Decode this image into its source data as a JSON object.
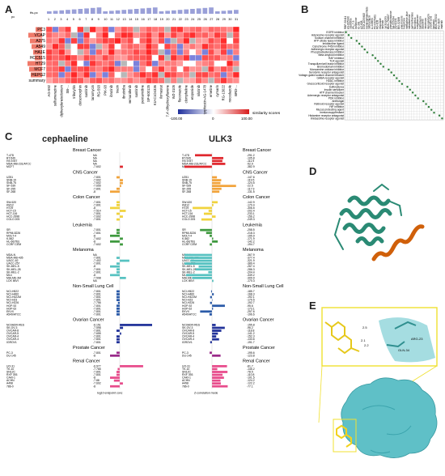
{
  "panels": {
    "A": "A",
    "B": "B",
    "C": "C",
    "D": "D",
    "E": "E"
  },
  "panelA": {
    "top_label": "tfs-pc",
    "side_label": "pc",
    "rows": [
      "PC3",
      "VCAP",
      "A375",
      "A549",
      "HA1E",
      "HCC515",
      "HT29",
      "MCF7",
      "HEPG2",
      "summary"
    ],
    "col_numbers": [
      "1",
      "2",
      "3",
      "4",
      "5",
      "6",
      "7",
      "8",
      "9",
      "10",
      "11",
      "12",
      "13",
      "14",
      "15",
      "16",
      "17",
      "18",
      "19",
      "20",
      "21",
      "22",
      "23",
      "24",
      "25",
      "26",
      "27",
      "28",
      "29",
      "30",
      "31"
    ],
    "col_names": [
      "AG-592",
      "sulfamerazine",
      "diphenyleneiodonium",
      "SB-...",
      "tributyltin",
      "dorsomorphin",
      "sunitinib",
      "tanomycin",
      "RG-593",
      "PIK-93",
      "ibrutinib",
      "tracin",
      "ibrutiniba",
      "vemurafenib",
      "sunitinib",
      "pentamidine",
      "SP-600125",
      "KU-C1O4336",
      "ilomastat",
      "7,4'-dihydroxyflavone",
      "WZ-3105",
      "fluconazole",
      "clompheline",
      "etoposide",
      "nilotinib",
      "tyrphostin-AG-1478",
      "emetine",
      "cymarin",
      "RG-13022",
      "nocodazole",
      "BRD-..."
    ],
    "legend_title": "similarity scores",
    "legend_ticks": [
      "-100.00",
      "0",
      "100.00"
    ]
  },
  "panelB": {
    "col_labels": [
      "RBP-52411",
      "AS-605240",
      "cladribine",
      "IPL-7-3",
      "isoflavone",
      "IC-261",
      "AZ-628",
      "GSK-1059615",
      "bisindolylmaleimide",
      "mithramycin",
      "A-443654",
      "PD-0325901",
      "RG-108",
      "etoposide",
      "ibrutinib",
      "cyclosporin",
      "BMS-754807",
      "phenylbutazone",
      "SB-525334",
      "ZSTK474",
      "BIX-02188",
      "anastrozole",
      "buspirone",
      "methylene-blue",
      "mitoxantrone",
      "pyrimethamine",
      "tacrolimus",
      "rosiglitazone",
      "bafilomycin",
      "dasatinib",
      "irinotecan",
      "ikarugamycin",
      "ursolic-acid",
      "lopinavir",
      "BMS-387032",
      "WZ-3105",
      "imatinib"
    ],
    "row_labels": [
      "EGFR inhibitor",
      "Adenosine receptor agonist",
      "Sodium channel inhibitor",
      "ATP citrate lyase inhibitor",
      "Imidazoline ligand",
      "Cytochrome P450 inhibitor",
      "Adrenergic receptor agonist",
      "Phosphodiesterase inhibitor",
      "Beta amyloid inhibitor",
      "RAF inhibitor",
      "TLR agonist",
      "Tranquilizer/cell lease inhibitor",
      "Bromodomain inhibitor",
      "Monoamine oxidase inhibitor",
      "Serotonin receptor antagonist",
      "Voltage-gated sodium channel blocker",
      "GABA receptor agonist",
      "HDAC inhibitor",
      "Glucocorticoid receptor agonist",
      "Sulfonylurea",
      "Insulin sensitizer",
      "ATP channel blocker",
      "Adrenergic receptor antagonist",
      "PDK inhibitor",
      "Antifungal",
      "Retinoid receptor agonist",
      "HIF inhibitor",
      "Mucus protecting agent",
      "Immunosuppressant",
      "Histamine receptor antagonist",
      "Imidazoline receptor agonist"
    ]
  },
  "panelC": {
    "title_left": "cephaeline",
    "title_right": "ULK3",
    "xlabel_left": "log10 endpoint conc",
    "xlabel_right": "Z-correlation mode",
    "groups": [
      {
        "name": "Breast Cancer",
        "color": "#e0282e",
        "rows": [
          [
            "T-47D",
            "NA",
            "-291.2"
          ],
          [
            "BT-549",
            "NA",
            "-105.8"
          ],
          [
            "HS 578T",
            "NA",
            "-111.9"
          ],
          [
            "MDA-MB-231/ATCC",
            "NA",
            "-92.9"
          ],
          [
            "MCF7",
            "-7.602",
            "-382.9"
          ]
        ]
      },
      {
        "name": "CNS Cancer",
        "color": "#f2a33a",
        "rows": [
          [
            "U251",
            "-7.801",
            "-147.6"
          ],
          [
            "SNB-19",
            "-7.602",
            "-119.5"
          ],
          [
            "SNB-75",
            "-7.602",
            "-124.5"
          ],
          [
            "SF-539",
            "-7.655",
            "-22.5"
          ],
          [
            "SF-295",
            "-7.801",
            "-117.9"
          ],
          [
            "SF-268",
            "-8",
            "-131.5"
          ]
        ]
      },
      {
        "name": "Colon Cancer",
        "color": "#f1d33c",
        "rows": [
          [
            "SW-620",
            "-7.801",
            "-142.9"
          ],
          [
            "KM12",
            "-7.801",
            "-170.4"
          ],
          [
            "HT29",
            "-8",
            "-306.5"
          ],
          [
            "HCT-15",
            "-7.514",
            "-202.4"
          ],
          [
            "HCT-116",
            "-7.801",
            "-233.1"
          ],
          [
            "HCC-2998",
            "-7.602",
            "-156.2"
          ],
          [
            "COLO 205",
            "-7.801",
            "-249.3"
          ]
        ]
      },
      {
        "name": "Leukemia",
        "color": "#3f9a3f",
        "rows": [
          [
            "SR",
            "-7.801",
            "-258.5"
          ],
          [
            "RPMI-8226",
            "-7.801",
            "-218.3"
          ],
          [
            "MOLT-4",
            "-8",
            "-195.9"
          ],
          [
            "K-562",
            "-7.602",
            "-171.9"
          ],
          [
            "HL-60(TB)",
            "-8",
            "-142.2"
          ],
          [
            "CCRF-CEM",
            "-7.602",
            "-194.7"
          ]
        ]
      },
      {
        "name": "Melanoma",
        "color": "#57c2c1",
        "rows": [
          [
            "MDA-N",
            "NA",
            "-367.9"
          ],
          [
            "MDA-MB-435",
            "-7.801",
            "-377.4"
          ],
          [
            "UACC-62",
            "-7.402",
            "-321.9"
          ],
          [
            "UACC-257",
            "-7.801",
            "-389.4"
          ],
          [
            "SK-MEL-5",
            "-8",
            "-267.4"
          ],
          [
            "SK-MEL-28",
            "-7.801",
            "-286.3"
          ],
          [
            "SK-MEL-2",
            "-7.801",
            "-204.4"
          ],
          [
            "M14",
            "-8",
            "-349.2"
          ],
          [
            "MALME-3M",
            "-7.508",
            "-309.9"
          ],
          [
            "LOX IMVI",
            "NA",
            "-170.3"
          ]
        ]
      },
      {
        "name": "Non-Small Lung Cell",
        "color": "#2a5aa8",
        "rows": [
          [
            "NCI-H522",
            "-7.801",
            "-185.7"
          ],
          [
            "NCI-H460",
            "-7.801",
            "-168.3"
          ],
          [
            "NCI-H322M",
            "-7.801",
            "-192.1"
          ],
          [
            "NCI-H23",
            "-7.801",
            "-179.5"
          ],
          [
            "NCI-H226",
            "-7.756",
            "-192.7"
          ],
          [
            "HOP-92",
            "-7.801",
            "-95.6"
          ],
          [
            "HOP-62",
            "-7.801",
            "-173.1"
          ],
          [
            "EKVX",
            "-7.801",
            "-257.6"
          ],
          [
            "A549/ATCC",
            "-7.801",
            "-196.6"
          ]
        ]
      },
      {
        "name": "Ovarian Cancer",
        "color": "#21329a",
        "rows": [
          [
            "NCI/ADR-RES",
            "-6.151",
            "-155.8"
          ],
          [
            "SK-OV-3",
            "-7.598",
            "-96.2"
          ],
          [
            "OVCAR-8",
            "-7.801",
            "-118.8"
          ],
          [
            "OVCAR-5",
            "-7.655",
            "-141.2"
          ],
          [
            "OVCAR-4",
            "-7.801",
            "-152.3"
          ],
          [
            "OVCAR-3",
            "-7.801",
            "-133.6"
          ],
          [
            "IGROV1",
            "-7.801",
            "-191.7"
          ]
        ]
      },
      {
        "name": "Prostate Cancer",
        "color": "#9a2a8a",
        "rows": [
          [
            "PC-3",
            "-7.801",
            "-195.6"
          ],
          [
            "DU-145",
            "-8",
            "-123.8"
          ]
        ]
      },
      {
        "name": "Renal Cancer",
        "color": "#e84c8c",
        "rows": [
          [
            "UO-31",
            "-6.977",
            "-81.7"
          ],
          [
            "TK-10",
            "-7.765",
            "-145.2"
          ],
          [
            "SN12C",
            "-7.801",
            "-78.5"
          ],
          [
            "RXF 393",
            "-7.801",
            "-110.8"
          ],
          [
            "CAKI-1",
            "-8",
            "-101.5"
          ],
          [
            "ACHN",
            "-7.88",
            "-124.2"
          ],
          [
            "A498",
            "-7.602",
            "-122.2"
          ],
          [
            "786-0",
            "-8",
            "-77.1"
          ]
        ]
      }
    ]
  },
  "panelE": {
    "labels": [
      "ARG-23",
      "GLN-34",
      "2.5",
      "2.1",
      "2.2",
      "2.5"
    ]
  },
  "colors": {
    "heat_red": "#e02020",
    "heat_blue": "#2b3aa0",
    "protein_teal": "#2e8b7a",
    "helix_orange": "#d0600a",
    "surface_cyan": "#6fc9cf",
    "ligand_yellow": "#f2d21c",
    "zoom_yellow": "#f0e030",
    "dot_green": "#2f7f3a"
  }
}
